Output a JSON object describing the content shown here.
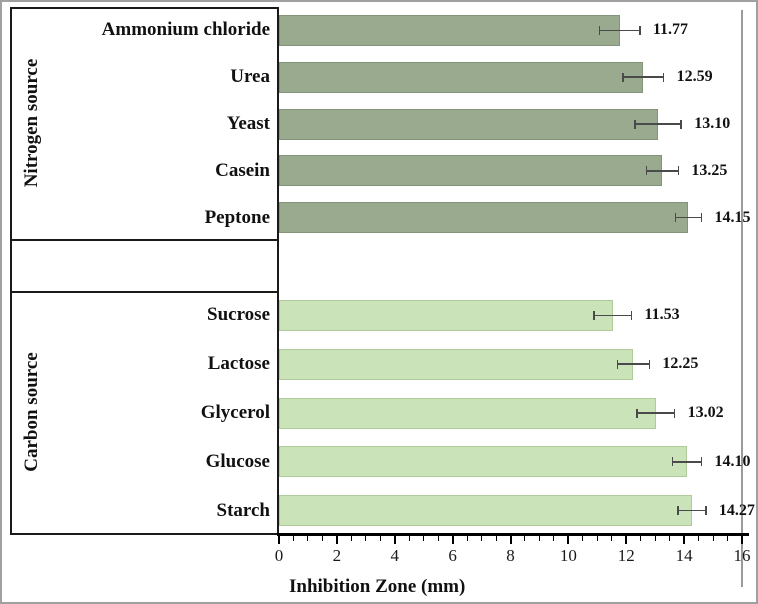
{
  "chart_data": {
    "type": "bar",
    "orientation": "horizontal",
    "xlabel": "Inhibition Zone (mm)",
    "xlim": [
      0,
      16
    ],
    "x_major_ticks": [
      0,
      2,
      4,
      6,
      8,
      10,
      12,
      14,
      16
    ],
    "x_minor_step": 0.5,
    "grid": false,
    "legend": "none",
    "groups": [
      {
        "label": "Nitrogen source",
        "bar_color": "#9aaa8e",
        "bar_border": "#83947a",
        "items": [
          {
            "category": "Ammonium chloride",
            "value": 11.77,
            "error": 0.7,
            "value_label": "11.77"
          },
          {
            "category": "Urea",
            "value": 12.59,
            "error": 0.7,
            "value_label": "12.59"
          },
          {
            "category": "Yeast",
            "value": 13.1,
            "error": 0.8,
            "value_label": "13.10"
          },
          {
            "category": "Casein",
            "value": 13.25,
            "error": 0.55,
            "value_label": "13.25"
          },
          {
            "category": "Peptone",
            "value": 14.15,
            "error": 0.45,
            "value_label": "14.15"
          }
        ]
      },
      {
        "label": "Carbon source",
        "bar_color": "#cbe3b9",
        "bar_border": "#aecb99",
        "items": [
          {
            "category": "Sucrose",
            "value": 11.53,
            "error": 0.65,
            "value_label": "11.53"
          },
          {
            "category": "Lactose",
            "value": 12.25,
            "error": 0.55,
            "value_label": "12.25"
          },
          {
            "category": "Glycerol",
            "value": 13.02,
            "error": 0.65,
            "value_label": "13.02"
          },
          {
            "category": "Glucose",
            "value": 14.1,
            "error": 0.5,
            "value_label": "14.10"
          },
          {
            "category": "Starch",
            "value": 14.27,
            "error": 0.48,
            "value_label": "14.27"
          }
        ]
      }
    ],
    "colors": {
      "error_bar": "#4a4a4a",
      "axis": "#000000",
      "box_border": "#1a1a1a",
      "plot_right_border": "#9b9b9b",
      "text": "#111111"
    }
  }
}
